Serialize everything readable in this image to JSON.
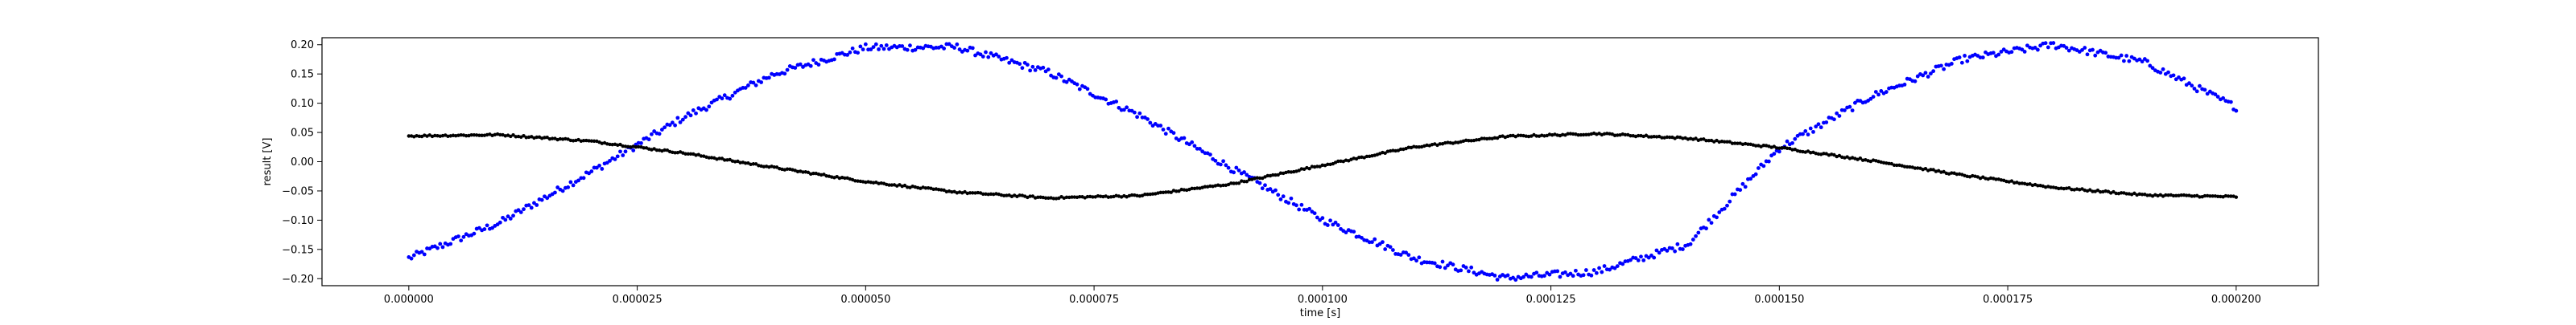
{
  "chart_data": {
    "type": "scatter",
    "xlabel": "time [s]",
    "ylabel": "result [V]",
    "xlim": [
      -9.5e-06,
      0.000209
    ],
    "ylim": [
      -0.212,
      0.212
    ],
    "xticks": [
      0.0,
      2.5e-05,
      5e-05,
      7.5e-05,
      0.0001,
      0.000125,
      0.00015,
      0.000175,
      0.0002
    ],
    "xtick_labels": [
      "0.000000",
      "0.000025",
      "0.000050",
      "0.000075",
      "0.000100",
      "0.000125",
      "0.000150",
      "0.000175",
      "0.000200"
    ],
    "yticks": [
      -0.2,
      -0.15,
      -0.1,
      -0.05,
      0.0,
      0.05,
      0.1,
      0.15,
      0.2
    ],
    "ytick_labels": [
      "−0.20",
      "−0.15",
      "−0.10",
      "−0.05",
      "0.00",
      "0.05",
      "0.10",
      "0.15",
      "0.20"
    ],
    "grid": false,
    "series": [
      {
        "color": "#0000ff",
        "x": [
          0.0,
          1e-05,
          2e-05,
          3e-05,
          4e-05,
          5e-05,
          6e-05,
          7e-05,
          8e-05,
          9e-05,
          0.0001,
          0.00011,
          0.00012,
          0.00013,
          0.00014,
          0.00015,
          0.00016,
          0.00017,
          0.00018,
          0.00019,
          0.0002
        ],
        "y": [
          -0.165,
          -0.104,
          -0.017,
          0.075,
          0.15,
          0.195,
          0.196,
          0.153,
          0.079,
          -0.011,
          -0.099,
          -0.165,
          -0.199,
          -0.188,
          -0.141,
          0.023,
          0.111,
          0.175,
          0.2,
          0.17,
          0.093
        ]
      },
      {
        "color": "#000000",
        "x": [
          0.0,
          1e-05,
          2e-05,
          3e-05,
          4e-05,
          5e-05,
          6e-05,
          7e-05,
          8e-05,
          9e-05,
          0.0001,
          0.00011,
          0.00012,
          0.00013,
          0.00014,
          0.00015,
          0.00016,
          0.00017,
          0.00018,
          0.00019,
          0.0002
        ],
        "y": [
          0.044,
          0.046,
          0.035,
          0.015,
          -0.01,
          -0.034,
          -0.052,
          -0.062,
          -0.058,
          -0.038,
          -0.006,
          0.025,
          0.043,
          0.048,
          0.04,
          0.024,
          0.002,
          -0.023,
          -0.044,
          -0.057,
          -0.06
        ]
      }
    ]
  }
}
